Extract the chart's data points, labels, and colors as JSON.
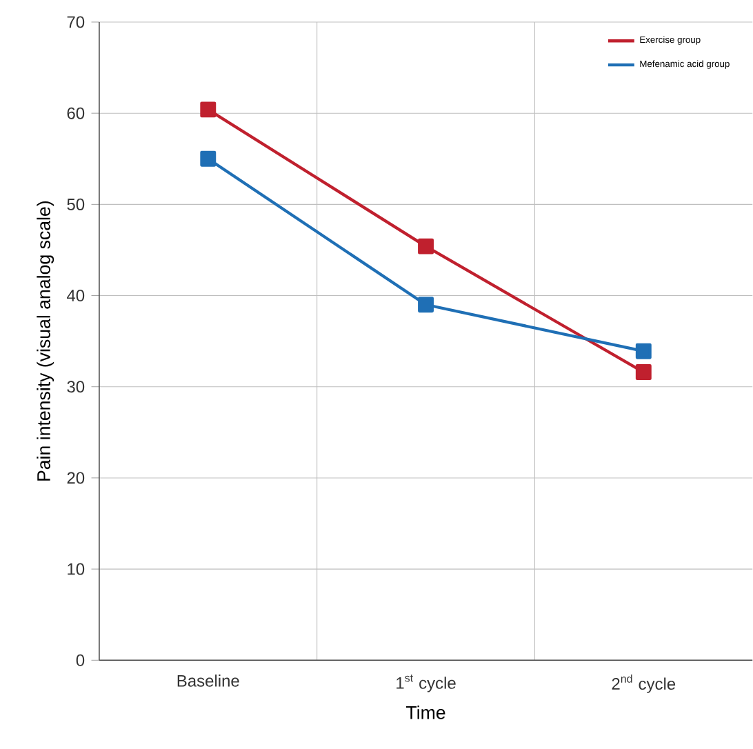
{
  "chart_data": {
    "type": "line",
    "xlabel": "Time",
    "ylabel": "Pain intensity (visual analog scale)",
    "categories": [
      "Baseline",
      "1$^{st}$ cycle",
      "2$^{nd}$ cycle"
    ],
    "series": [
      {
        "name": "Exercise group",
        "color": "#c0202e",
        "values": [
          60.4,
          45.4,
          31.6
        ]
      },
      {
        "name": "Mefenamic acid group",
        "color": "#1f6fb5",
        "values": [
          55.0,
          39.0,
          33.9
        ]
      }
    ],
    "ylim": [
      0,
      70
    ],
    "yticks": [
      0,
      10,
      20,
      30,
      40,
      50,
      60,
      70
    ],
    "grid": true,
    "legend": "top right",
    "marker": "square",
    "line_style": "solid"
  }
}
